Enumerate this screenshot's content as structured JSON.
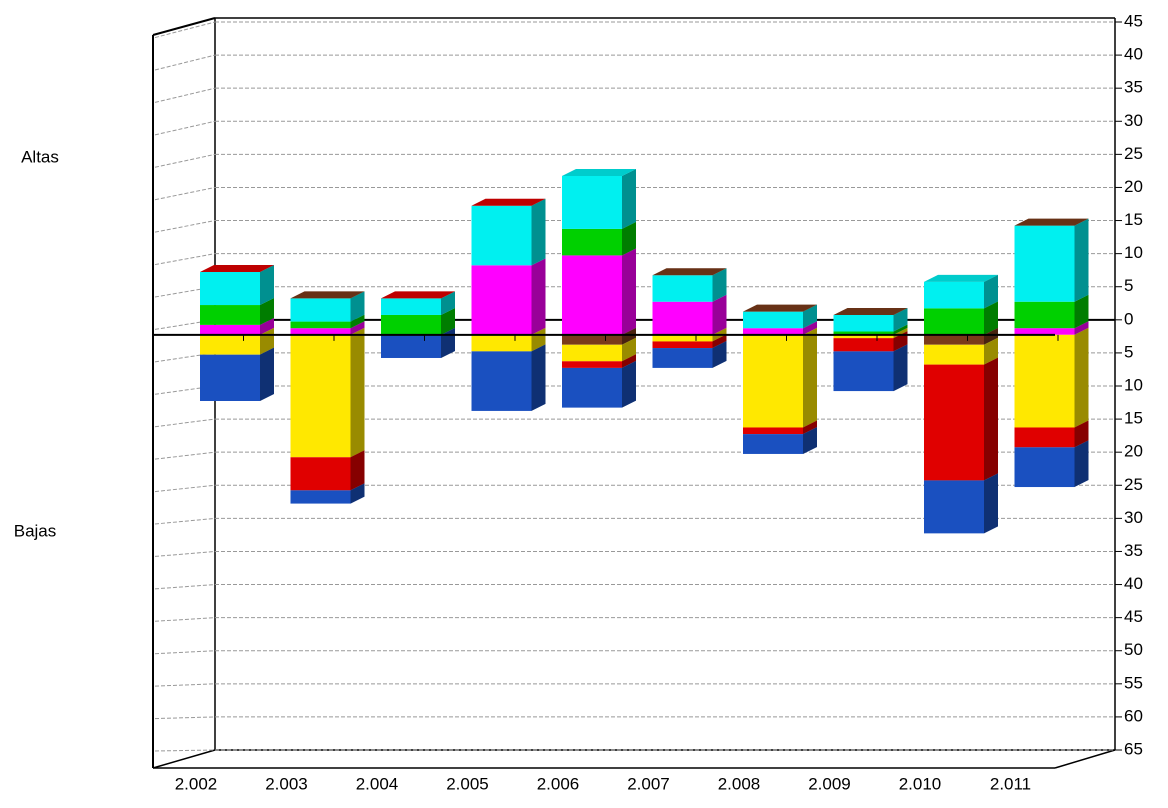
{
  "chart_data": {
    "type": "bar3d",
    "annotations": [
      "Altas",
      "Bajas"
    ],
    "categories": [
      "2.002",
      "2.003",
      "2.004",
      "2.005",
      "2.006",
      "2.007",
      "2.008",
      "2.009",
      "2.010",
      "2.011"
    ],
    "series": [
      {
        "color": "#ff00ff",
        "values": [
          1.5,
          1,
          0,
          10.5,
          12,
          5,
          1,
          0,
          0,
          1
        ]
      },
      {
        "color": "#00d000",
        "values": [
          3,
          1,
          3,
          0,
          4,
          0,
          0,
          0.5,
          4,
          4
        ]
      },
      {
        "color": "#00f0f0",
        "values": [
          5,
          3.5,
          2.5,
          9,
          8,
          4,
          2.5,
          2.5,
          4,
          11.5
        ]
      },
      {
        "color": "#7a3a1a",
        "values": [
          0,
          0,
          0,
          0,
          -1.5,
          0,
          0,
          0,
          -1.5,
          0
        ]
      },
      {
        "color": "#ffe800",
        "values": [
          -3,
          -18.5,
          0,
          -2.5,
          -2.5,
          -1,
          -14,
          -0.5,
          -3,
          -14
        ]
      },
      {
        "color": "#e00000",
        "values": [
          0,
          -5,
          0,
          0,
          -1,
          -1,
          -1,
          -2,
          -17.5,
          -3
        ]
      },
      {
        "color": "#1a50c0",
        "values": [
          -7,
          -2,
          -3.5,
          -9,
          -6,
          -3,
          -3,
          -6,
          -8,
          -6
        ]
      }
    ],
    "ylim": [
      -65,
      45
    ],
    "yticks": [
      45,
      40,
      35,
      30,
      25,
      20,
      15,
      10,
      5,
      0,
      {
        "value": -5,
        "label": "5"
      },
      {
        "value": -10,
        "label": "10"
      },
      {
        "value": -15,
        "label": "15"
      },
      {
        "value": -20,
        "label": "20"
      },
      {
        "value": -25,
        "label": "25"
      },
      {
        "value": -30,
        "label": "30"
      },
      {
        "value": -35,
        "label": "35"
      },
      {
        "value": -40,
        "label": "40"
      },
      {
        "value": -45,
        "label": "45"
      },
      {
        "value": -50,
        "label": "50"
      },
      {
        "value": -55,
        "label": "55"
      },
      {
        "value": -60,
        "label": "60"
      },
      {
        "value": -65,
        "label": "65"
      }
    ],
    "grid": true
  }
}
